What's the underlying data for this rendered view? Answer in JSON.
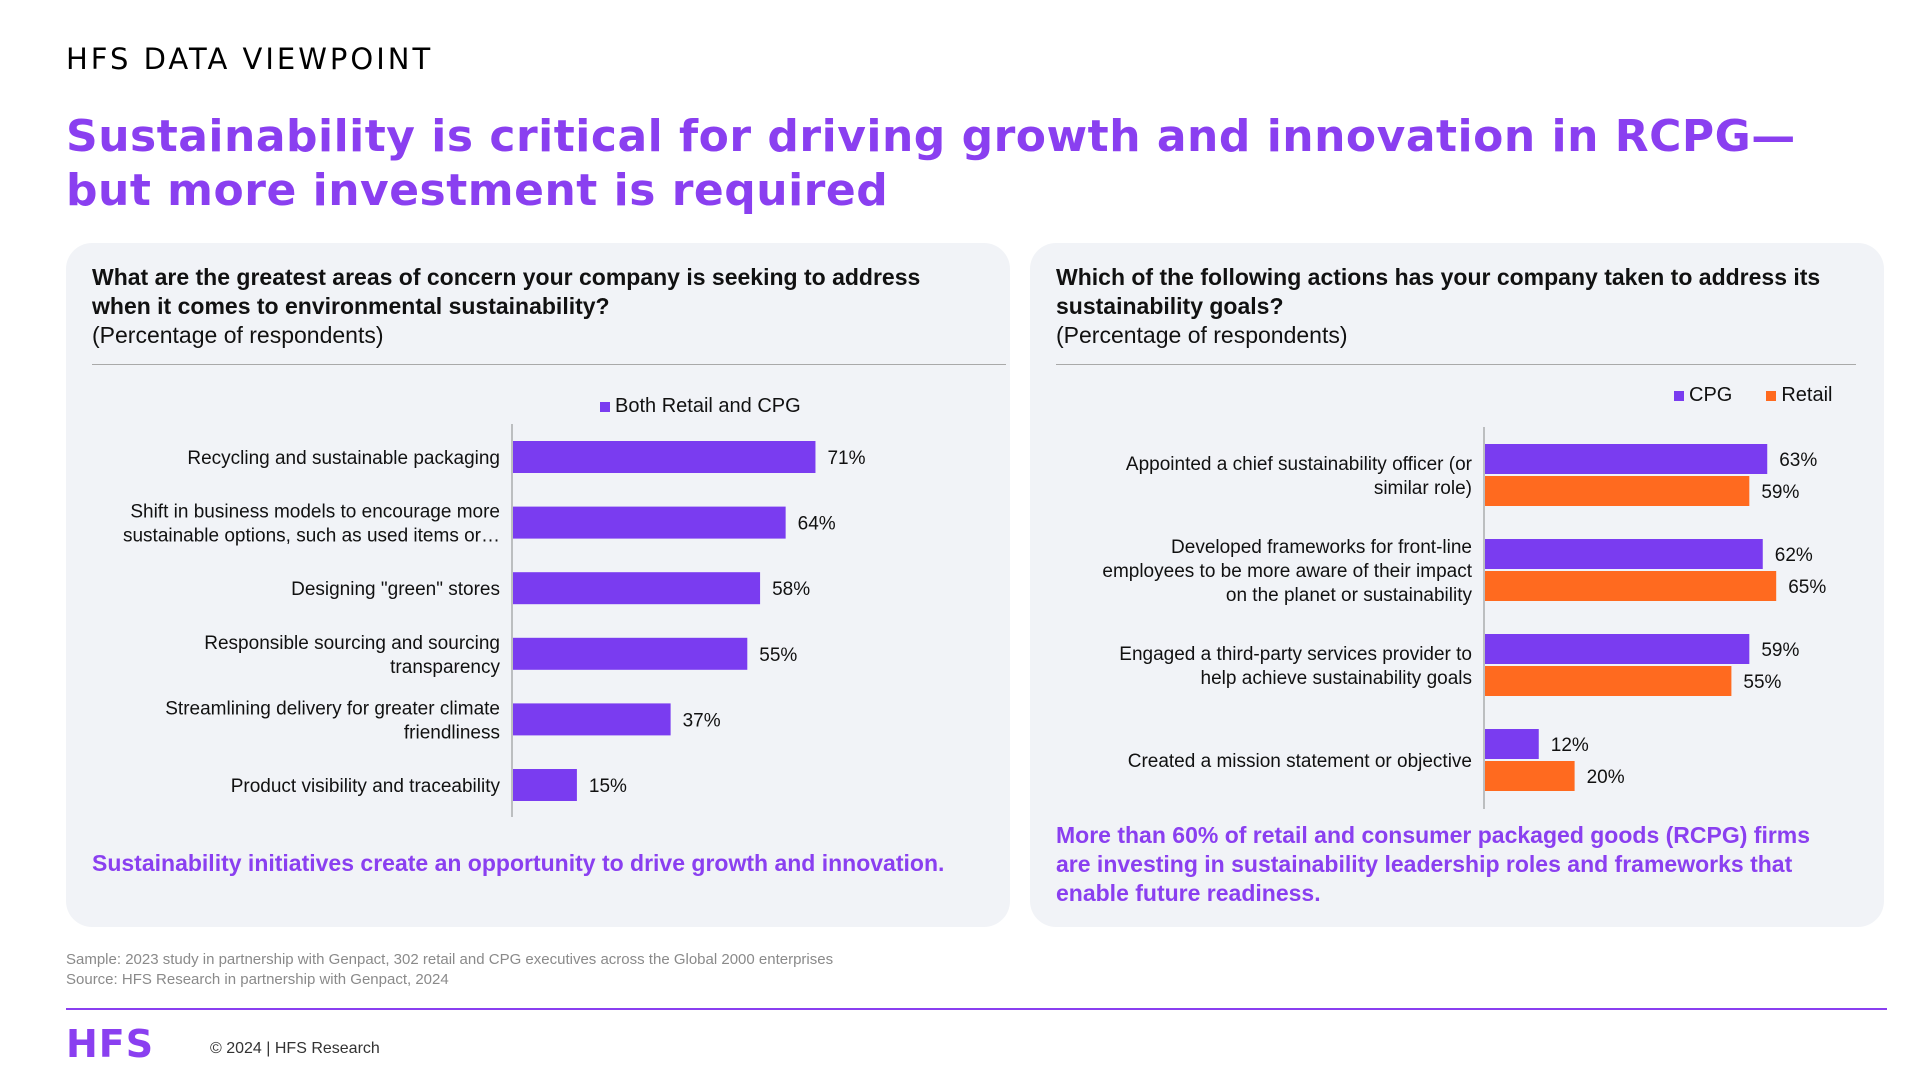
{
  "header": {
    "eyebrow": "HFS DATA VIEWPOINT",
    "headline": "Sustainability is critical for driving growth and innovation in RCPG—but more investment is required"
  },
  "colors": {
    "purple": "#7a3cf0",
    "orange": "#ff6a1f",
    "accent_text": "#8a3ff0"
  },
  "left_panel": {
    "question": "What are the greatest areas of concern your company is seeking to address when it comes to environmental sustainability?",
    "subtitle": "(Percentage of respondents)",
    "note": "Sustainability initiatives create an opportunity to drive growth and innovation."
  },
  "right_panel": {
    "question": "Which of the following actions has your company taken to address its sustainability goals?",
    "subtitle": "(Percentage of respondents)",
    "note": "More than 60% of retail and consumer packaged goods (RCPG) firms are investing in sustainability leadership roles and frameworks that enable future readiness."
  },
  "chart_data": [
    {
      "type": "bar",
      "orientation": "horizontal",
      "categories": [
        [
          "Recycling and sustainable packaging"
        ],
        [
          "Shift in business models to encourage more",
          "sustainable options, such as used items or…"
        ],
        [
          "Designing \"green\" stores"
        ],
        [
          "Responsible sourcing and sourcing",
          "transparency"
        ],
        [
          "Streamlining delivery for greater climate",
          "friendliness"
        ],
        [
          "Product visibility and traceability"
        ]
      ],
      "series": [
        {
          "name": "Both Retail and CPG",
          "color": "#7a3cf0",
          "values": [
            71,
            64,
            58,
            55,
            37,
            15
          ]
        }
      ],
      "value_suffix": "%",
      "xlim": [
        0,
        100
      ],
      "legend": "top"
    },
    {
      "type": "bar",
      "orientation": "horizontal",
      "categories": [
        [
          "Appointed a chief sustainability officer (or",
          "similar role)"
        ],
        [
          "Developed frameworks for front-line",
          "employees to be more aware of their impact",
          "on the planet or sustainability"
        ],
        [
          "Engaged a third-party services provider to",
          "help achieve sustainability goals"
        ],
        [
          "Created a mission statement or objective"
        ]
      ],
      "series": [
        {
          "name": "CPG",
          "color": "#7a3cf0",
          "values": [
            63,
            62,
            59,
            12
          ]
        },
        {
          "name": "Retail",
          "color": "#ff6a1f",
          "values": [
            59,
            65,
            55,
            20
          ]
        }
      ],
      "value_suffix": "%",
      "xlim": [
        0,
        100
      ],
      "legend": "top-right"
    }
  ],
  "footer": {
    "sample": "Sample: 2023 study in partnership with Genpact, 302 retail and CPG executives across the Global 2000 enterprises",
    "source": "Source: HFS Research in partnership with Genpact, 2024",
    "logo": "HFS",
    "copyright": "© 2024 | HFS Research"
  }
}
